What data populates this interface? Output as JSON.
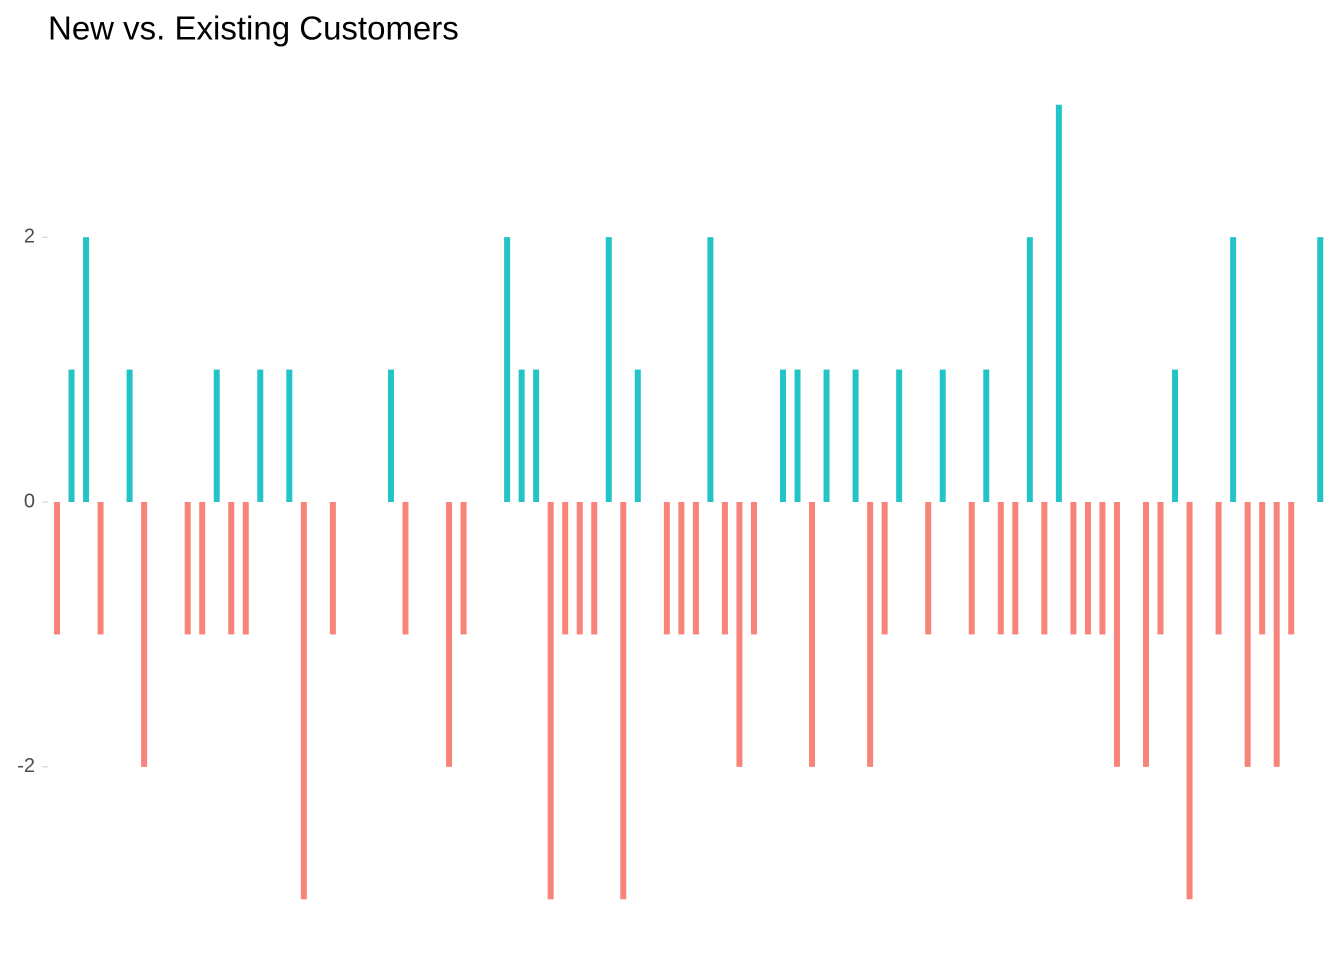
{
  "chart_data": {
    "type": "bar",
    "title": "New vs. Existing Customers",
    "values": [
      -1,
      1,
      2,
      -1,
      0,
      1,
      -2,
      0,
      0,
      -1,
      -1,
      1,
      -1,
      -1,
      1,
      0,
      1,
      -3,
      0,
      -1,
      0,
      0,
      0,
      1,
      -1,
      0,
      0,
      -2,
      -1,
      0,
      0,
      2,
      1,
      1,
      -3,
      -1,
      -1,
      -1,
      2,
      -3,
      1,
      0,
      -1,
      -1,
      -1,
      2,
      -1,
      -2,
      -1,
      0,
      1,
      1,
      -2,
      1,
      0,
      1,
      -2,
      -1,
      1,
      0,
      -1,
      1,
      0,
      -1,
      1,
      -1,
      -1,
      2,
      -1,
      3,
      -1,
      -1,
      -1,
      -2,
      0,
      -2,
      -1,
      1,
      -3,
      0,
      -1,
      2,
      -2,
      -1,
      -2,
      -1,
      0,
      2
    ],
    "colors": {
      "positive": "#22c4c8",
      "negative": "#f8837a"
    },
    "ylim": [
      -3.3,
      3.3
    ],
    "yticks": [
      -2,
      0,
      2
    ],
    "grid": false
  }
}
